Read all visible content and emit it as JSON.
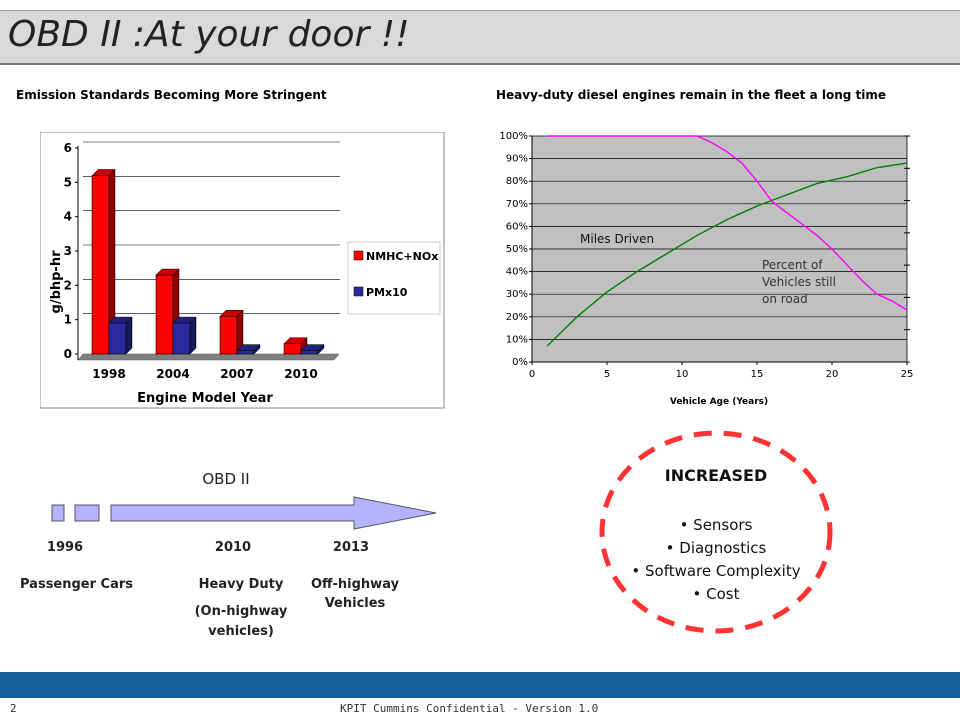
{
  "slide": {
    "title": "OBD II :At your door !!"
  },
  "left_chart": {
    "heading": "Emission Standards Becoming More Stringent",
    "chart_data": {
      "type": "bar",
      "categories": [
        "1998",
        "2004",
        "2007",
        "2010"
      ],
      "series": [
        {
          "name": "NMHC+NOx",
          "values": [
            5.2,
            2.3,
            1.1,
            0.3
          ],
          "color": "#ff0000"
        },
        {
          "name": "PMx10",
          "values": [
            0.9,
            0.9,
            0.1,
            0.1
          ],
          "color": "#2b2b9e"
        }
      ],
      "ylabel": "g/bhp-hr",
      "xlabel": "Engine Model Year",
      "ylim": [
        0,
        6
      ],
      "yticks": [
        "0",
        "1",
        "2",
        "3",
        "4",
        "5",
        "6"
      ],
      "legend": "right",
      "grid": true
    }
  },
  "right_chart": {
    "heading": "Heavy-duty diesel engines remain in the fleet a long time",
    "chart_data": {
      "type": "line",
      "xlabel": "Vehicle Age (Years)",
      "xlim": [
        0,
        25
      ],
      "ylim": [
        0,
        100
      ],
      "xticks": [
        "0",
        "5",
        "10",
        "15",
        "20",
        "25"
      ],
      "yticks": [
        "0%",
        "10%",
        "20%",
        "30%",
        "40%",
        "50%",
        "60%",
        "70%",
        "80%",
        "90%",
        "100%"
      ],
      "series": [
        {
          "label": "Miles Driven",
          "color": "#008000",
          "x": [
            1,
            3,
            5,
            7,
            9,
            11,
            13,
            15,
            17,
            19,
            21,
            23,
            25
          ],
          "y": [
            7,
            20,
            31,
            40,
            48,
            56,
            63,
            69,
            74,
            79,
            82,
            86,
            88
          ]
        },
        {
          "label": "Percent of Vehicles still on road",
          "color": "#ff00ff",
          "x": [
            1,
            5,
            10,
            11,
            12,
            13,
            14,
            15,
            16,
            17,
            18,
            19,
            20,
            21,
            22,
            23,
            24,
            25
          ],
          "y": [
            100,
            100,
            100,
            100,
            97,
            93,
            88,
            80,
            71,
            66,
            61,
            56,
            50,
            43,
            36,
            30,
            27,
            23
          ]
        }
      ],
      "annotations": [
        "Miles Driven",
        "Percent of",
        "Vehicles still",
        "on road"
      ],
      "plot_bg": "#c0c0c0"
    }
  },
  "timeline": {
    "title": "OBD II",
    "years": [
      "1996",
      "2010",
      "2013"
    ],
    "categories": [
      "Passenger Cars",
      "Heavy Duty",
      "(On-highway",
      "vehicles)",
      "Off-highway",
      "Vehicles"
    ],
    "arrow_color": "#b3b3ff"
  },
  "increased": {
    "title": "INCREASED",
    "items": [
      "• Sensors",
      "• Diagnostics",
      "• Software Complexity",
      "• Cost"
    ],
    "ring_color": "#ff3333"
  },
  "footer": {
    "page_number": "2",
    "text": "KPIT Cummins Confidential   - Version 1.0"
  }
}
